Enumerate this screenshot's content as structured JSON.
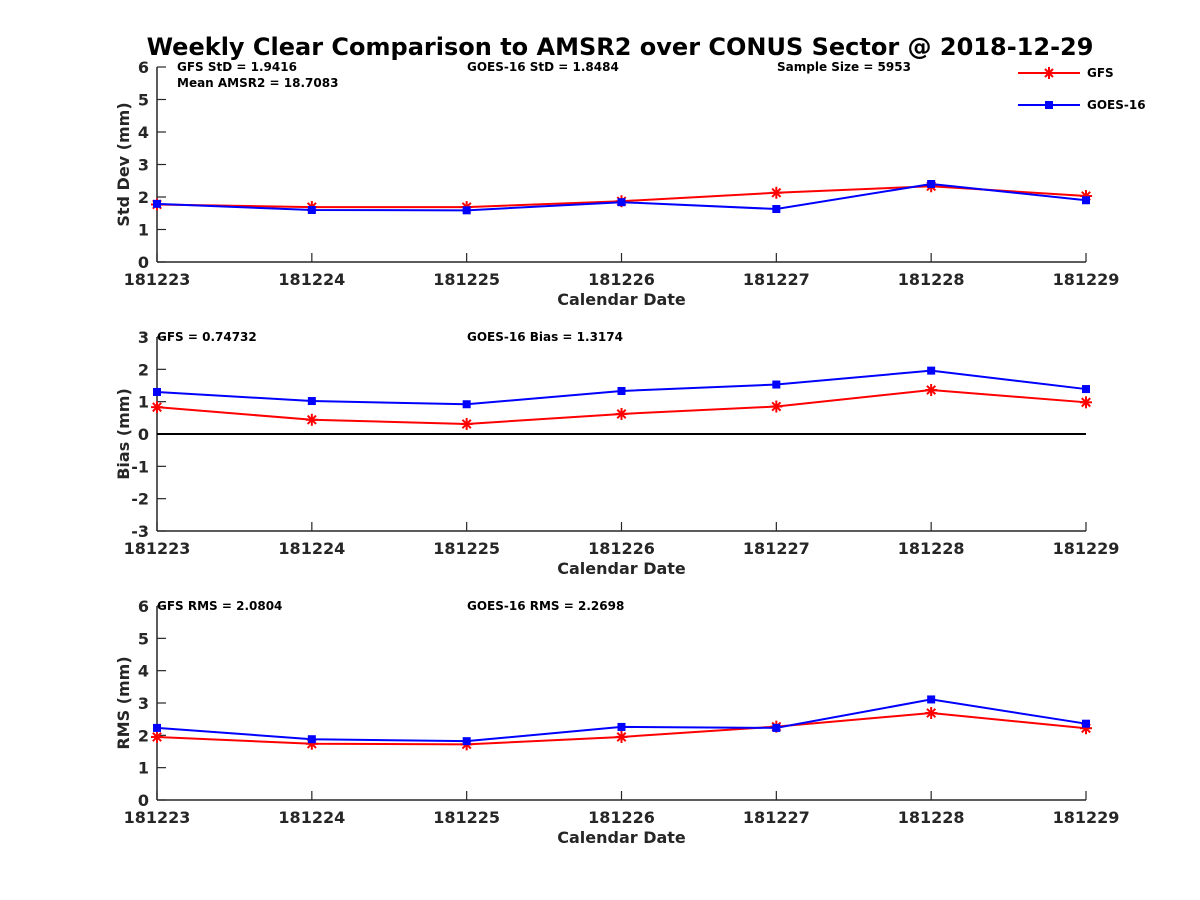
{
  "chart_data": {
    "title": "Weekly Clear Comparison to AMSR2 over CONUS Sector @ 2018-12-29",
    "type": "line",
    "legend": {
      "placement": "top-right",
      "entries": [
        {
          "name": "GFS",
          "color": "#ff0000",
          "marker": "asterisk"
        },
        {
          "name": "GOES-16",
          "color": "#0000ff",
          "marker": "square"
        }
      ]
    },
    "colors": {
      "GFS": "#ff0000",
      "GOES-16": "#0000ff",
      "axis": "#262626",
      "zero_line": "#000000"
    },
    "categories": [
      "181223",
      "181224",
      "181225",
      "181226",
      "181227",
      "181228",
      "181229"
    ],
    "panels": [
      {
        "id": "std",
        "xlabel": "Calendar Date",
        "ylabel": "Std Dev (mm)",
        "ylim": [
          0,
          6
        ],
        "yticks": [
          "0",
          "1",
          "2",
          "3",
          "4",
          "5",
          "6"
        ],
        "grid": false,
        "zero_line": false,
        "annotations": {
          "gfs": "GFS StD = 1.9416",
          "goes": "GOES-16 StD = 1.8484",
          "sample": "Sample Size = 5953",
          "mean": "Mean AMSR2 = 18.7083"
        },
        "series": [
          {
            "name": "GFS",
            "values": [
              1.77,
              1.69,
              1.69,
              1.87,
              2.13,
              2.33,
              2.03
            ]
          },
          {
            "name": "GOES-16",
            "values": [
              1.79,
              1.6,
              1.59,
              1.84,
              1.63,
              2.4,
              1.9
            ]
          }
        ]
      },
      {
        "id": "bias",
        "xlabel": "Calendar Date",
        "ylabel": "Bias (mm)",
        "ylim": [
          -3,
          3
        ],
        "yticks": [
          "-3",
          "-2",
          "-1",
          "0",
          "1",
          "2",
          "3"
        ],
        "grid": false,
        "zero_line": true,
        "annotations": {
          "gfs": "GFS = 0.74732",
          "goes": "GOES-16 Bias  = 1.3174"
        },
        "series": [
          {
            "name": "GFS",
            "values": [
              0.83,
              0.44,
              0.31,
              0.62,
              0.85,
              1.36,
              0.98
            ]
          },
          {
            "name": "GOES-16",
            "values": [
              1.3,
              1.02,
              0.92,
              1.33,
              1.53,
              1.96,
              1.39
            ]
          }
        ]
      },
      {
        "id": "rms",
        "xlabel": "Calendar Date",
        "ylabel": "RMS (mm)",
        "ylim": [
          0,
          6
        ],
        "yticks": [
          "0",
          "1",
          "2",
          "3",
          "4",
          "5",
          "6"
        ],
        "grid": false,
        "zero_line": false,
        "annotations": {
          "gfs": "GFS RMS = 2.0804",
          "goes": "GOES-16 RMS = 2.2698"
        },
        "series": [
          {
            "name": "GFS",
            "values": [
              1.95,
              1.74,
              1.72,
              1.95,
              2.27,
              2.69,
              2.22
            ]
          },
          {
            "name": "GOES-16",
            "values": [
              2.23,
              1.88,
              1.82,
              2.26,
              2.23,
              3.11,
              2.36
            ]
          }
        ]
      }
    ]
  }
}
